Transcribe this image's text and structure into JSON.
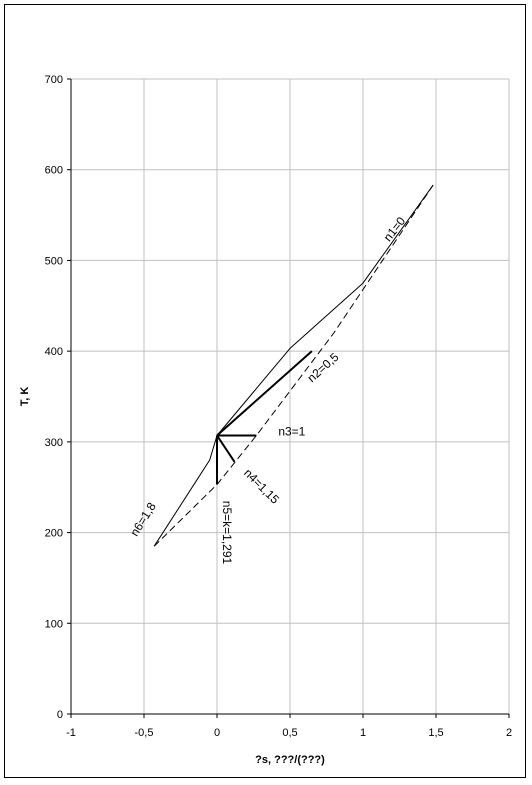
{
  "chart_data": {
    "type": "line",
    "title": "",
    "xlabel": "?s, ???/(???)",
    "ylabel": "T, K",
    "xlim": [
      -1,
      2
    ],
    "ylim": [
      0,
      700
    ],
    "xticks": [
      -1,
      -0.5,
      0,
      0.5,
      1,
      1.5,
      2
    ],
    "xtick_labels": [
      "-1",
      "-0,5",
      "0",
      "0,5",
      "1",
      "1,5",
      "2"
    ],
    "yticks": [
      0,
      100,
      200,
      300,
      400,
      500,
      600,
      700
    ],
    "ytick_labels": [
      "0",
      "100",
      "200",
      "300",
      "400",
      "500",
      "600",
      "700"
    ],
    "grid": true,
    "legend": "none",
    "series": [
      {
        "style": "solid",
        "width": 1,
        "x": [
          0,
          0.5,
          1.0,
          1.48
        ],
        "y": [
          307,
          403,
          475,
          583
        ]
      },
      {
        "style": "solid",
        "width": 2,
        "x": [
          0,
          0.65
        ],
        "y": [
          307,
          400
        ]
      },
      {
        "style": "solid",
        "width": 2,
        "x": [
          0,
          0.27
        ],
        "y": [
          307,
          307
        ]
      },
      {
        "style": "solid",
        "width": 2,
        "x": [
          0,
          0.12
        ],
        "y": [
          307,
          278
        ]
      },
      {
        "style": "solid",
        "width": 2,
        "x": [
          0,
          0
        ],
        "y": [
          307,
          253
        ]
      },
      {
        "style": "solid",
        "width": 1,
        "x": [
          0,
          -0.05,
          -0.15,
          -0.43
        ],
        "y": [
          307,
          280,
          255,
          185
        ]
      },
      {
        "style": "dashed",
        "width": 1,
        "x": [
          -0.43,
          0,
          0.27,
          0.8,
          1.48
        ],
        "y": [
          185,
          253,
          307,
          420,
          583
        ]
      }
    ],
    "annotations": [
      {
        "text": "n1=0",
        "x": 1.18,
        "y": 520
      },
      {
        "text": "n2=0,5",
        "x": 0.65,
        "y": 365
      },
      {
        "text": "n3=1",
        "x": 0.42,
        "y": 307
      },
      {
        "text": "n4=1,15",
        "x": 0.18,
        "y": 265
      },
      {
        "text": "n5=k=1,291",
        "x": 0.04,
        "y": 235
      },
      {
        "text": "n6=1,8",
        "x": -0.55,
        "y": 195
      }
    ]
  }
}
